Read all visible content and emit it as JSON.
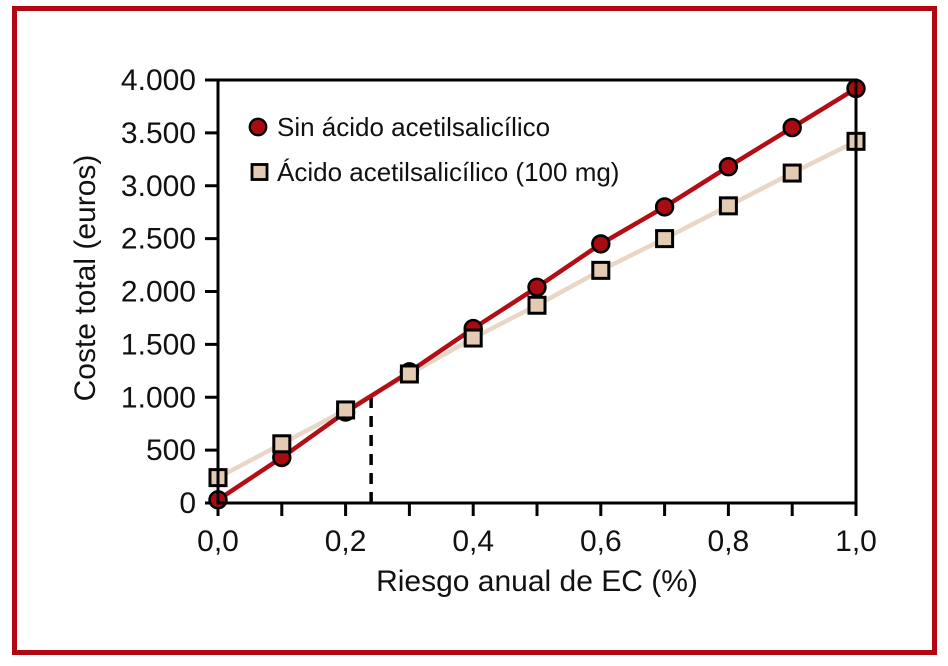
{
  "figure": {
    "border_color": "#b20613",
    "background": "#ffffff"
  },
  "colors": {
    "axis": "#000000",
    "series1_line": "#b30d16",
    "series1_marker": "#a80c12",
    "series2_line": "#e9d6c6",
    "series2_marker": "#e3cab2",
    "marker_outline": "#000000"
  },
  "chart_data": {
    "type": "line",
    "title": "",
    "xlabel": "Riesgo anual de EC (%)",
    "ylabel": "Coste total (euros)",
    "xlim": [
      0,
      1
    ],
    "ylim": [
      0,
      4000
    ],
    "grid": false,
    "legend_position": "top-left-inside",
    "x": [
      0,
      0.1,
      0.2,
      0.3,
      0.4,
      0.5,
      0.6,
      0.7,
      0.8,
      0.9,
      1.0
    ],
    "series": [
      {
        "name": "Sin ácido acetilsalicílico",
        "marker": "circle",
        "line_color": "#b30d16",
        "marker_fill": "#a80c12",
        "marker_stroke": "#000000",
        "values": [
          30,
          430,
          860,
          1240,
          1650,
          2040,
          2450,
          2800,
          3180,
          3550,
          3920
        ]
      },
      {
        "name": "Ácido acetilsalicílico (100 mg)",
        "marker": "square",
        "line_color": "#e9d6c6",
        "marker_fill": "#e3cab2",
        "marker_stroke": "#000000",
        "values": [
          240,
          560,
          880,
          1220,
          1560,
          1870,
          2200,
          2500,
          2810,
          3120,
          3420
        ]
      }
    ],
    "x_axis": {
      "minor_tick_values": [
        0,
        0.1,
        0.2,
        0.3,
        0.4,
        0.5,
        0.6,
        0.7,
        0.8,
        0.9,
        1.0
      ],
      "major_ticks": [
        {
          "value": 0.0,
          "label": "0,0"
        },
        {
          "value": 0.2,
          "label": "0,2"
        },
        {
          "value": 0.4,
          "label": "0,4"
        },
        {
          "value": 0.6,
          "label": "0,6"
        },
        {
          "value": 0.8,
          "label": "0,8"
        },
        {
          "value": 1.0,
          "label": "1,0"
        }
      ]
    },
    "y_axis": {
      "ticks": [
        {
          "value": 0,
          "label": "0"
        },
        {
          "value": 500,
          "label": "500"
        },
        {
          "value": 1000,
          "label": "1.000"
        },
        {
          "value": 1500,
          "label": "1.500"
        },
        {
          "value": 2000,
          "label": "2.000"
        },
        {
          "value": 2500,
          "label": "2.500"
        },
        {
          "value": 3000,
          "label": "3.000"
        },
        {
          "value": 3500,
          "label": "3.500"
        },
        {
          "value": 4000,
          "label": "4.000"
        }
      ]
    },
    "annotation": {
      "type": "vertical-dashed-line",
      "x": 0.24,
      "y_from": 0,
      "y_to": 1000
    }
  }
}
